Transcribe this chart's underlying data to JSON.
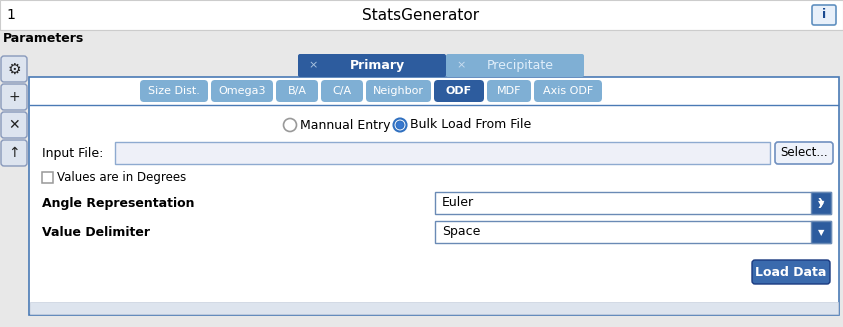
{
  "title": "StatsGenerator",
  "title_number": "1",
  "info_button": "i",
  "params_label": "Parameters",
  "tabs_primary": [
    "Primary",
    "Precipitate"
  ],
  "tabs_sub": [
    "Size Dist.",
    "Omega3",
    "B/A",
    "C/A",
    "Neighbor",
    "ODF",
    "MDF",
    "Axis ODF"
  ],
  "active_primary_tab": "Primary",
  "active_sub_tab": "ODF",
  "radio_options": [
    "Mannual Entry",
    "Bulk Load From File"
  ],
  "active_radio": 1,
  "input_file_label": "Input File:",
  "select_button": "Select...",
  "checkbox_label": "Values are in Degrees",
  "angle_rep_label": "Angle Representation",
  "angle_rep_value": "Euler",
  "value_delim_label": "Value Delimiter",
  "value_delim_value": "Space",
  "load_button": "Load Data",
  "left_icons": [
    "⚙",
    "+",
    "✕",
    "↑"
  ],
  "bg_color": "#e8e8e8",
  "header_bg": "#ffffff",
  "primary_tab_color": "#2d5c9e",
  "precip_tab_color": "#7fafd4",
  "sub_tab_active_color": "#2d5c9e",
  "sub_tab_inactive_color": "#7fafd4",
  "input_box_color": "#eef0f8",
  "load_btn_color": "#3a6aad",
  "border_color": "#4a7ab5",
  "panel_bg": "#ffffff"
}
